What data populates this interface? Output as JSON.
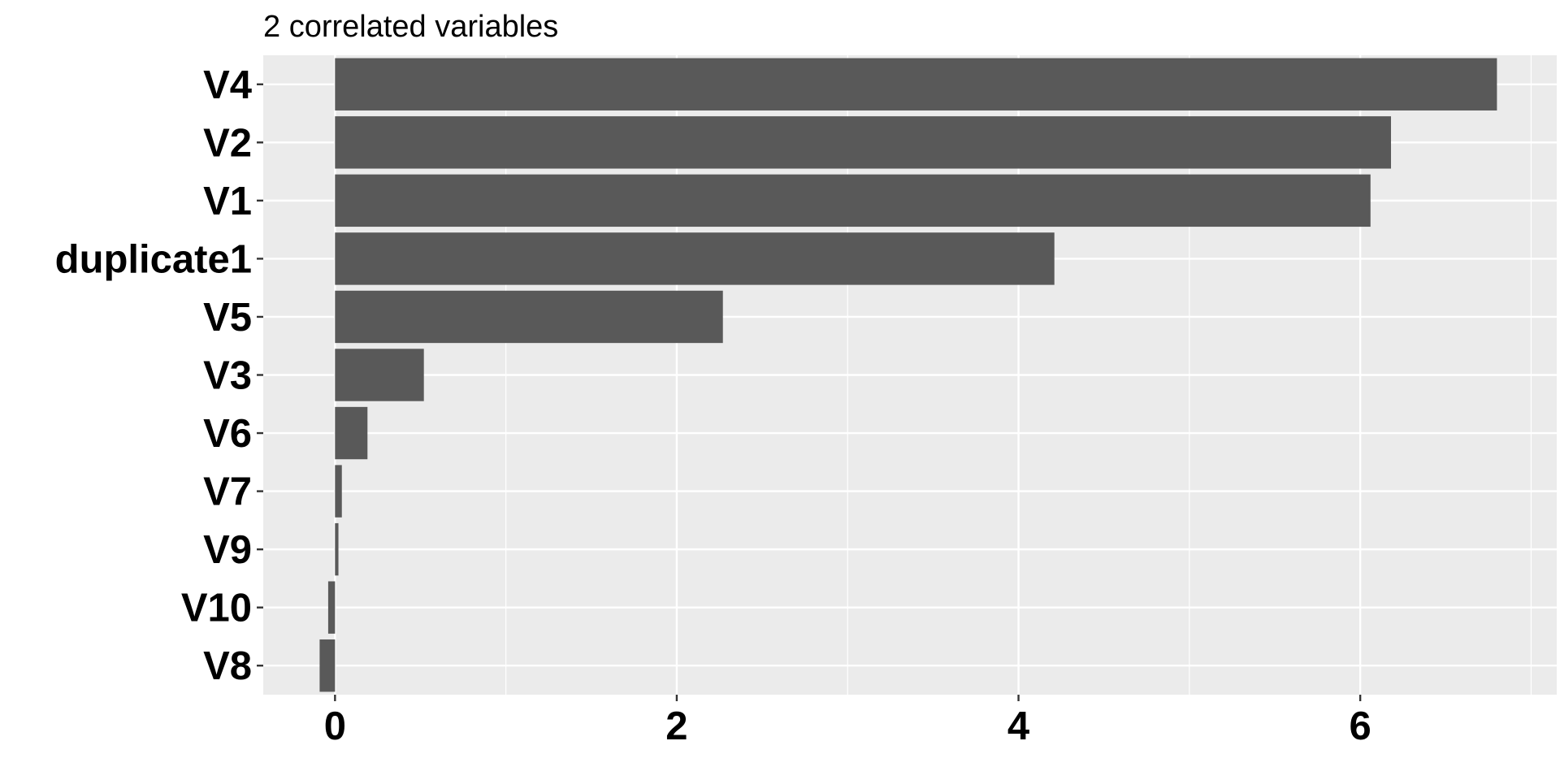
{
  "chart_data": {
    "type": "bar",
    "orientation": "horizontal",
    "title": "2 correlated variables",
    "xlabel": "",
    "ylabel": "",
    "categories": [
      "V4",
      "V2",
      "V1",
      "duplicate1",
      "V5",
      "V3",
      "V6",
      "V7",
      "V9",
      "V10",
      "V8"
    ],
    "values": [
      6.8,
      6.18,
      6.06,
      4.21,
      2.27,
      0.52,
      0.19,
      0.04,
      0.02,
      -0.04,
      -0.09
    ],
    "xlim": [
      -0.42,
      7.15
    ],
    "x_ticks": [
      0,
      2,
      4,
      6
    ],
    "x_tick_labels": [
      "0",
      "2",
      "4",
      "6"
    ],
    "grid": true,
    "legend": "none",
    "colors": {
      "bar": "#595959",
      "panel_background": "#ebebeb",
      "grid_line": "#ffffff",
      "text": "#000000"
    }
  }
}
